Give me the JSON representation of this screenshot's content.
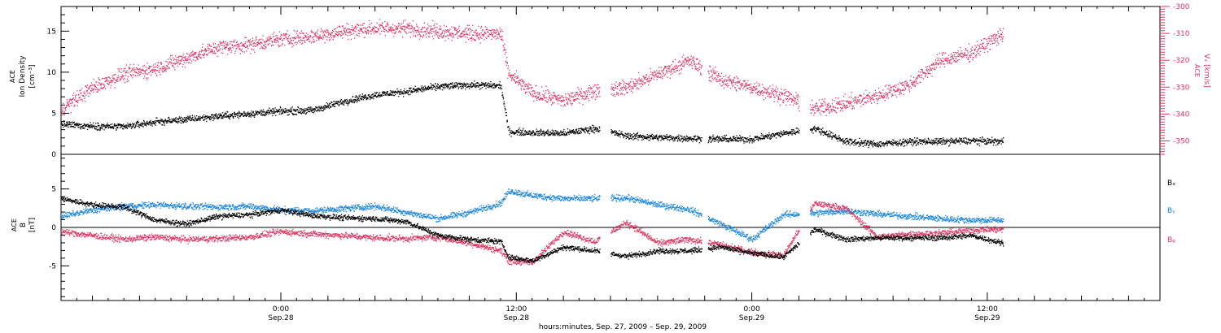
{
  "chart_data": [
    {
      "type": "scatter",
      "panel": "ion-density",
      "ylabel_lines": [
        "ACE",
        "Ion Density",
        "[cm⁻³]"
      ],
      "ylim": [
        0,
        18
      ],
      "yticks": [
        0,
        5,
        10,
        15
      ],
      "ytick_labels": [
        "0",
        "5",
        "10",
        "15"
      ],
      "right_axis": {
        "label_lines": [
          "ACE",
          "Vₓ [km/s]"
        ],
        "ylim": [
          -355,
          -300
        ],
        "yticks": [
          -300,
          -310,
          -320,
          -330,
          -340,
          -350
        ],
        "ytick_labels": [
          "-300",
          "-310",
          "-320",
          "-330",
          "-340",
          "-350"
        ],
        "color": "#e0325f"
      },
      "x_hours": [
        0,
        2,
        4,
        6,
        8,
        10,
        12,
        14,
        16,
        18,
        20,
        22,
        24,
        26,
        28,
        28.5,
        30,
        32,
        34,
        36,
        38,
        40,
        42,
        44,
        46,
        48,
        50,
        52,
        54,
        56,
        58,
        60
      ],
      "series": [
        {
          "color": "#000000",
          "axis": "left",
          "values": [
            3.7,
            3.5,
            3.4,
            4.0,
            4.3,
            4.7,
            5.0,
            5.3,
            5.4,
            6.5,
            7.3,
            7.7,
            8.3,
            8.5,
            8.4,
            2.8,
            2.7,
            2.6,
            3.2,
            2.3,
            2.1,
            2.0,
            1.9,
            1.9,
            2.6,
            3.2,
            1.6,
            1.3,
            1.6,
            1.6,
            1.7,
            1.6
          ]
        },
        {
          "color": "#e0325f",
          "axis": "right",
          "values": [
            -338,
            -330,
            -325,
            -323,
            -319,
            -315,
            -314,
            -312,
            -311,
            -309,
            -308,
            -308,
            -309,
            -310,
            -310,
            -325,
            -332,
            -335,
            -331,
            -330,
            -325,
            -320,
            -327,
            -330,
            -333,
            -338,
            -336,
            -333,
            -329,
            -320,
            -317,
            -310
          ]
        }
      ]
    },
    {
      "type": "scatter",
      "panel": "magnetic-field",
      "ylabel_lines": [
        "ACE",
        "B",
        "[nT]"
      ],
      "ylim": [
        -9.5,
        9.5
      ],
      "yticks": [
        -5,
        0,
        5
      ],
      "ytick_labels": [
        "-5",
        "0",
        "5"
      ],
      "x_hours": [
        0,
        2,
        4,
        6,
        8,
        10,
        12,
        14,
        16,
        18,
        20,
        22,
        24,
        26,
        28,
        28.5,
        30,
        32,
        34,
        36,
        38,
        40,
        42,
        44,
        46,
        48,
        50,
        52,
        54,
        56,
        58,
        60
      ],
      "series": [
        {
          "name": "Bₓ",
          "color": "#000000",
          "values": [
            3.8,
            3.0,
            2.7,
            1.0,
            0.5,
            1.5,
            1.7,
            2.3,
            1.6,
            1.3,
            1.2,
            0.8,
            -1.0,
            -1.5,
            -1.8,
            -3.8,
            -4.3,
            -2.5,
            -3.0,
            -3.7,
            -3.0,
            -3.0,
            -2.5,
            -3.3,
            -3.8,
            -0.2,
            -1.5,
            -1.3,
            -1.3,
            -1.3,
            -1.0,
            -2.0
          ]
        },
        {
          "name": "Bᵧ",
          "color": "#1a85e0",
          "values": [
            1.5,
            2.3,
            2.8,
            3.0,
            2.8,
            2.7,
            2.8,
            2.3,
            2.2,
            2.5,
            2.8,
            2.0,
            1.2,
            2.0,
            3.2,
            4.8,
            4.2,
            3.8,
            3.8,
            3.9,
            3.0,
            2.4,
            0.5,
            -1.5,
            1.7,
            1.9,
            2.2,
            1.8,
            1.5,
            1.2,
            1.0,
            1.0
          ]
        },
        {
          "name": "Bᵩ",
          "color": "#e0325f",
          "values": [
            -0.5,
            -1.0,
            -1.5,
            -1.2,
            -1.5,
            -1.4,
            -1.2,
            -0.5,
            -0.8,
            -1.0,
            -1.3,
            -1.4,
            -1.2,
            -2.0,
            -3.0,
            -4.3,
            -4.5,
            -0.5,
            -1.8,
            0.7,
            -2.0,
            -1.5,
            -2.2,
            -3.2,
            -3.6,
            3.2,
            2.5,
            -1.2,
            -0.8,
            -0.7,
            -0.3,
            -0.2
          ]
        }
      ]
    }
  ],
  "x_axis": {
    "range_hours": [
      0,
      70
    ],
    "tick_hours": [
      14,
      26,
      38,
      50,
      62
    ],
    "tick_labels": [
      {
        "time": "0:00",
        "date": "Sep.28"
      },
      {
        "time": "12:00",
        "date": "Sep.28"
      },
      {
        "time": "0:00",
        "date": "Sep.29"
      },
      {
        "time": "12:00",
        "date": "Sep.29"
      }
    ],
    "label_tick_hours": [
      14,
      29,
      44,
      59
    ],
    "title": "hours:minutes, Sep. 27, 2009 – Sep. 29, 2009"
  }
}
